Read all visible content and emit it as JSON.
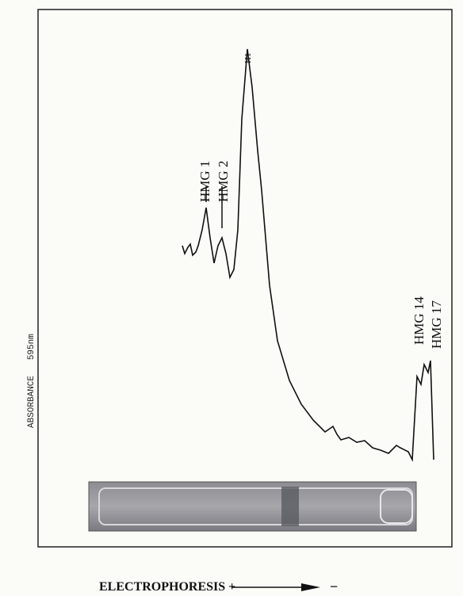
{
  "y_axis_label": "ABSORBANCE   595nm",
  "peaks": [
    {
      "label": "H1"
    },
    {
      "label": "HMG 1"
    },
    {
      "label": "HMG 2"
    },
    {
      "label": "HMG 14"
    },
    {
      "label": "HMG 17"
    }
  ],
  "x_axis_label": "ELECTROPHORESIS +",
  "x_axis_end": "−"
}
